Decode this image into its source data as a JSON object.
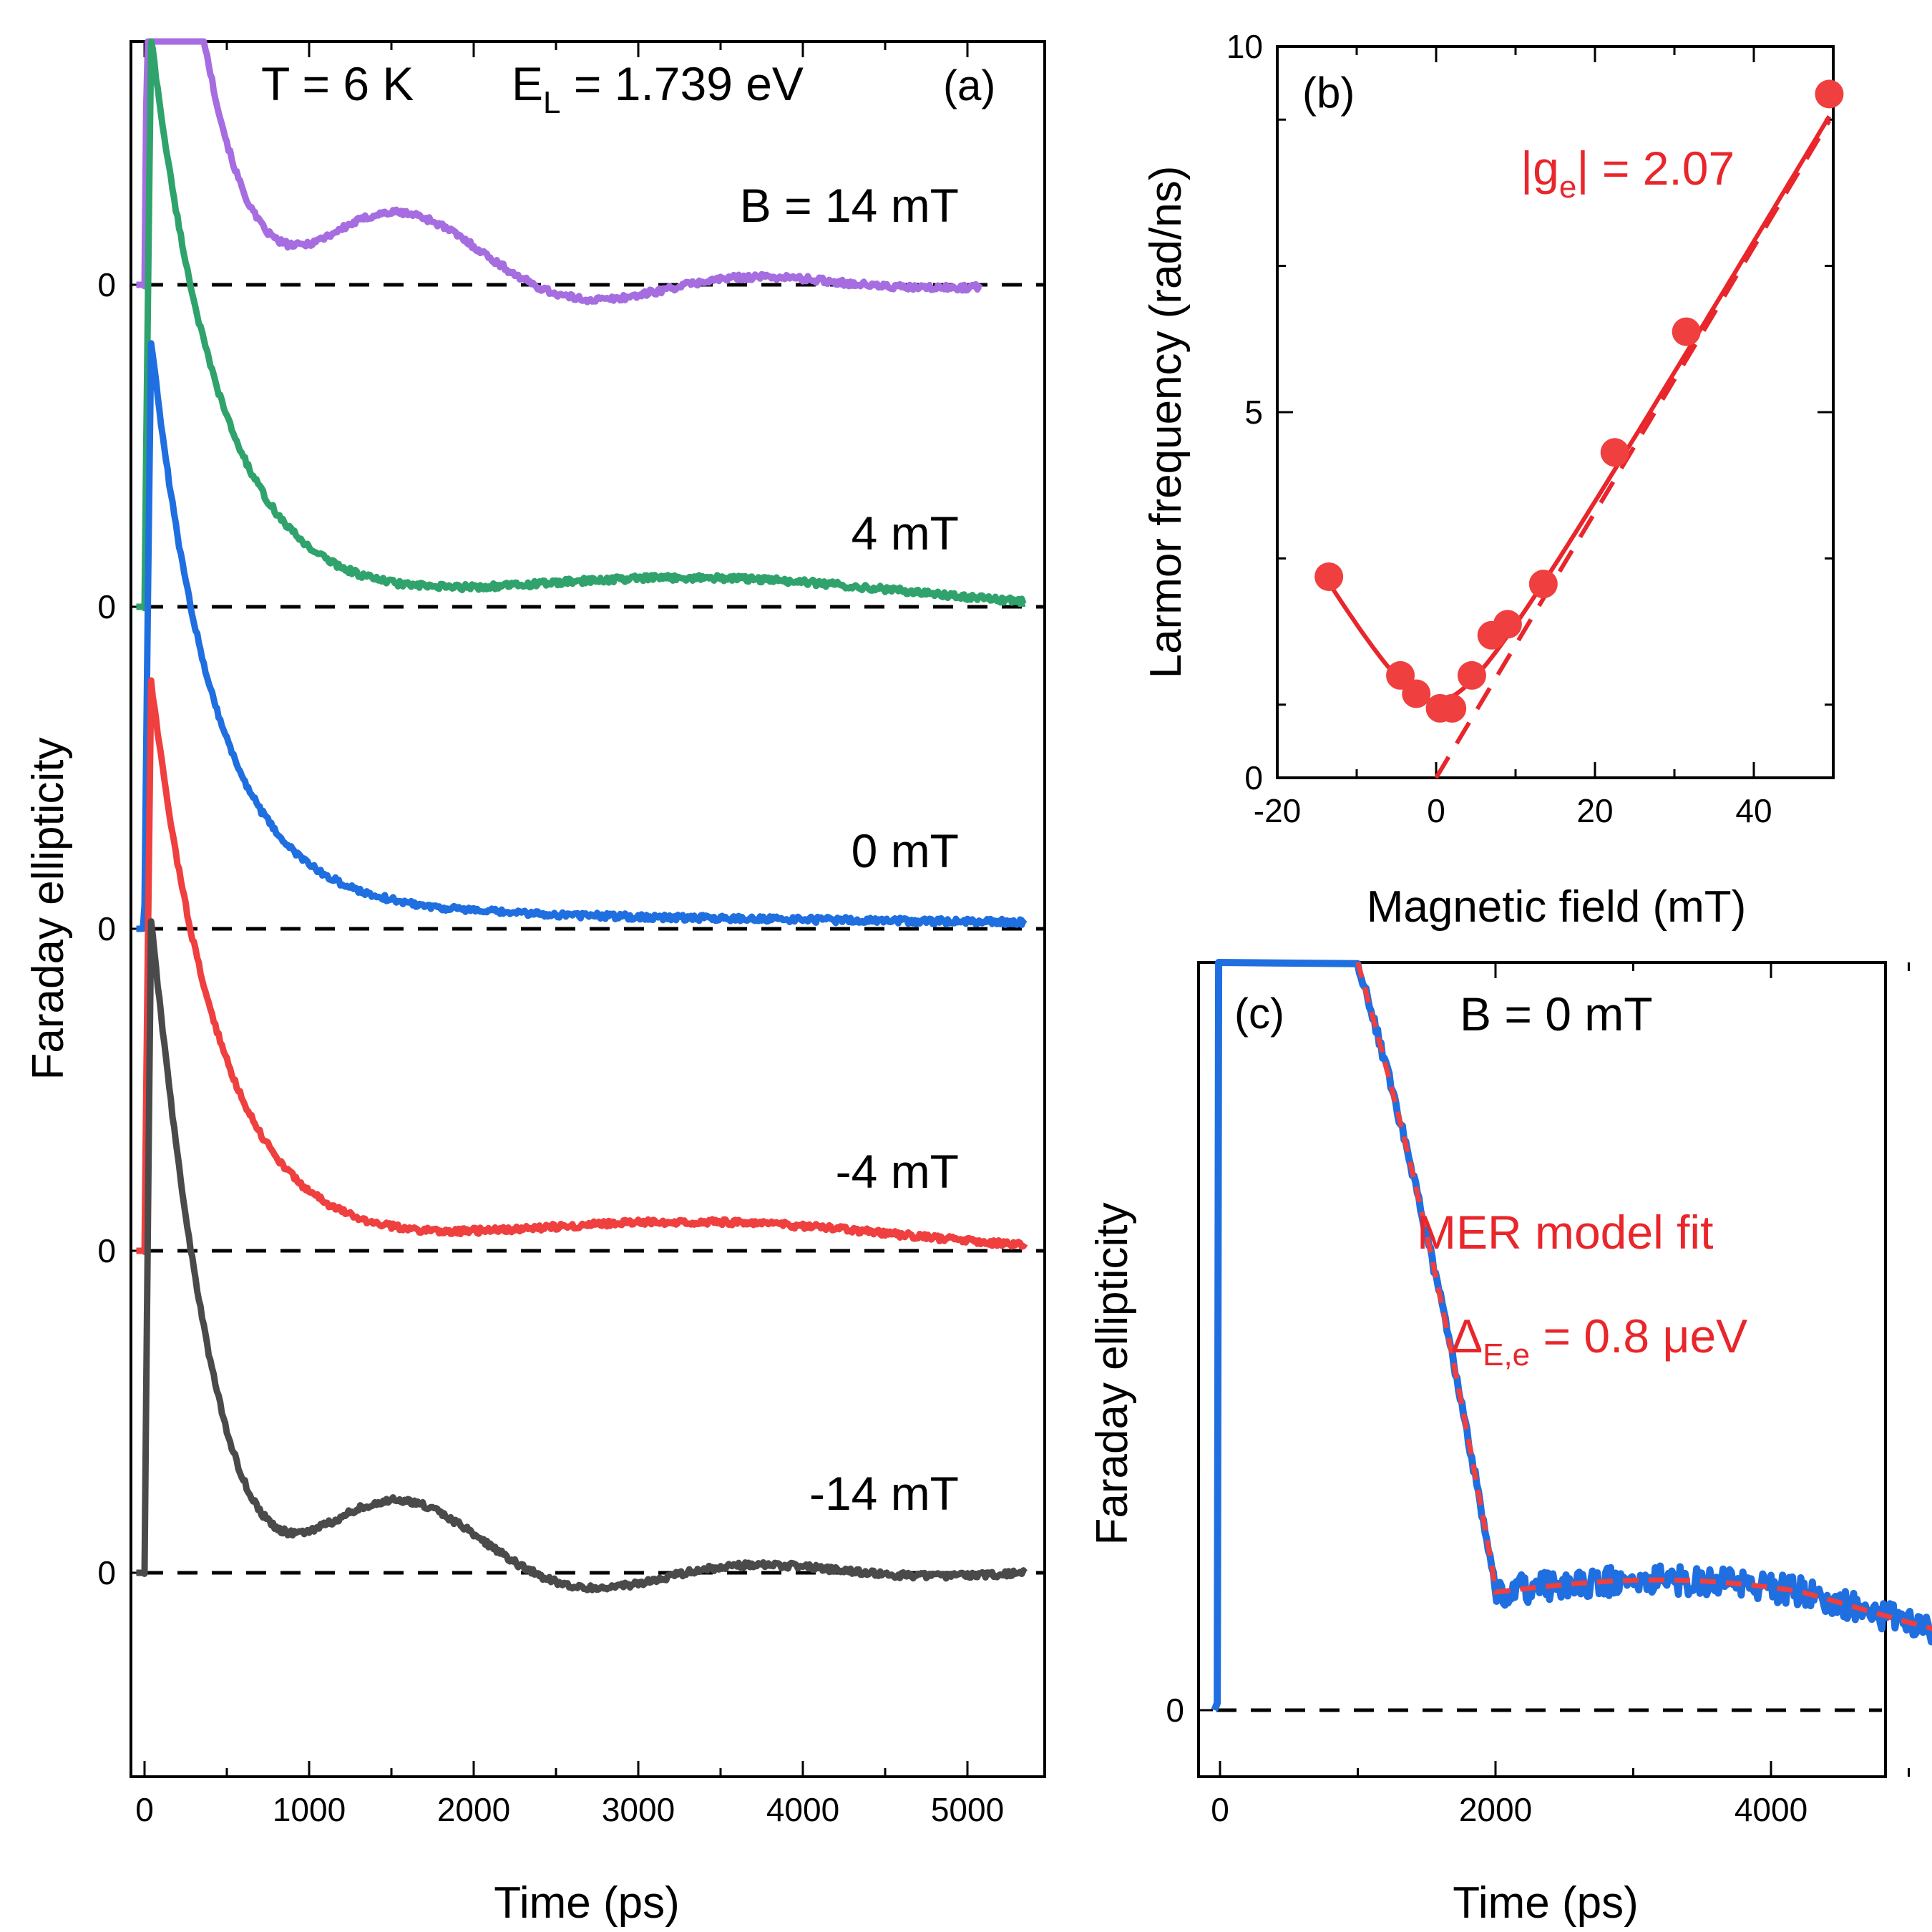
{
  "chart_data": [
    {
      "panel": "(a)",
      "type": "line",
      "xlabel": "Time (ps)",
      "ylabel": "Faraday ellipticity",
      "xlim": [
        -80,
        5500
      ],
      "xticks": [
        0,
        1000,
        2000,
        3000,
        4000,
        5000
      ],
      "zero_label": "0",
      "annotations": {
        "temperature": "T = 6 K",
        "laser_energy": "E",
        "laser_energy_sub": "L",
        "laser_energy_value": " = 1.739 eV"
      },
      "series": [
        {
          "name": "B = 14 mT",
          "color": "#a66de0",
          "field_mT": 14,
          "amplitude": 1.25,
          "decay_ps": 520,
          "omega_rad_ns": 3.0,
          "tau_osc_ps": 1200,
          "osc_phase": 0,
          "x_end": 5080
        },
        {
          "name": "4 mT",
          "color": "#2fa36b",
          "field_mT": 4,
          "amplitude": 1.25,
          "decay_ps": 420,
          "omega_rad_ns": 1.6,
          "tau_osc_ps": 3000,
          "osc_phase": 0,
          "x_end": 5350
        },
        {
          "name": "0 mT",
          "color": "#1f6fe0",
          "field_mT": 0,
          "amplitude": 1.25,
          "decay_ps": 380,
          "omega_rad_ns": 0.0,
          "tau_osc_ps": 4000,
          "osc_phase": 0,
          "x_end": 5350
        },
        {
          "name": "-4 mT",
          "color": "#ef3f3f",
          "field_mT": -4,
          "amplitude": 1.25,
          "decay_ps": 420,
          "omega_rad_ns": 1.6,
          "tau_osc_ps": 3000,
          "osc_phase": 0,
          "x_end": 5350
        },
        {
          "name": "-14 mT",
          "color": "#4a4a4a",
          "field_mT": -14,
          "amplitude": 1.25,
          "decay_ps": 520,
          "omega_rad_ns": 3.0,
          "tau_osc_ps": 1200,
          "osc_phase": 0,
          "x_end": 5350
        }
      ]
    },
    {
      "panel": "(b)",
      "type": "scatter",
      "xlabel": "Magnetic field (mT)",
      "ylabel": "Larmor frequency (rad/ns)",
      "xlim": [
        -20,
        50
      ],
      "ylim": [
        0,
        10
      ],
      "xticks": [
        -20,
        0,
        20,
        40
      ],
      "yticks": [
        0,
        5,
        10
      ],
      "fit_label": "|g",
      "fit_label_sub": "e",
      "fit_label_value": "| = 2.07",
      "points": [
        {
          "x": -13.5,
          "y": 2.75
        },
        {
          "x": -4.5,
          "y": 1.4
        },
        {
          "x": -2.5,
          "y": 1.15
        },
        {
          "x": 0.5,
          "y": 0.95
        },
        {
          "x": 2.0,
          "y": 0.95
        },
        {
          "x": 4.5,
          "y": 1.4
        },
        {
          "x": 7.0,
          "y": 1.95
        },
        {
          "x": 9.0,
          "y": 2.1
        },
        {
          "x": 13.5,
          "y": 2.65
        },
        {
          "x": 22.5,
          "y": 4.45
        },
        {
          "x": 31.5,
          "y": 6.1
        },
        {
          "x": 49.5,
          "y": 9.35
        }
      ],
      "fit_solid": {
        "g": 2.07,
        "omega0": 1.05
      },
      "fit_dashed": {
        "g": 2.07,
        "x_range": [
          0,
          49.5
        ]
      }
    },
    {
      "panel": "(c)",
      "type": "line",
      "xlabel": "Time (ps)",
      "ylabel": "Faraday ellipticity",
      "xlim": [
        -120,
        5500
      ],
      "xticks": [
        0,
        2000,
        4000
      ],
      "zero_label": "0",
      "title": "B = 0 mT",
      "fit_name": "MER model fit",
      "fit_param_symbol": "Δ",
      "fit_param_sub": "E,e",
      "fit_param_value": " = 0.8 μeV",
      "series": [
        {
          "name": "data",
          "color": "#1f6fe0"
        },
        {
          "name": "MER model fit",
          "color": "#ef3f3f",
          "dashed": true
        }
      ]
    }
  ]
}
